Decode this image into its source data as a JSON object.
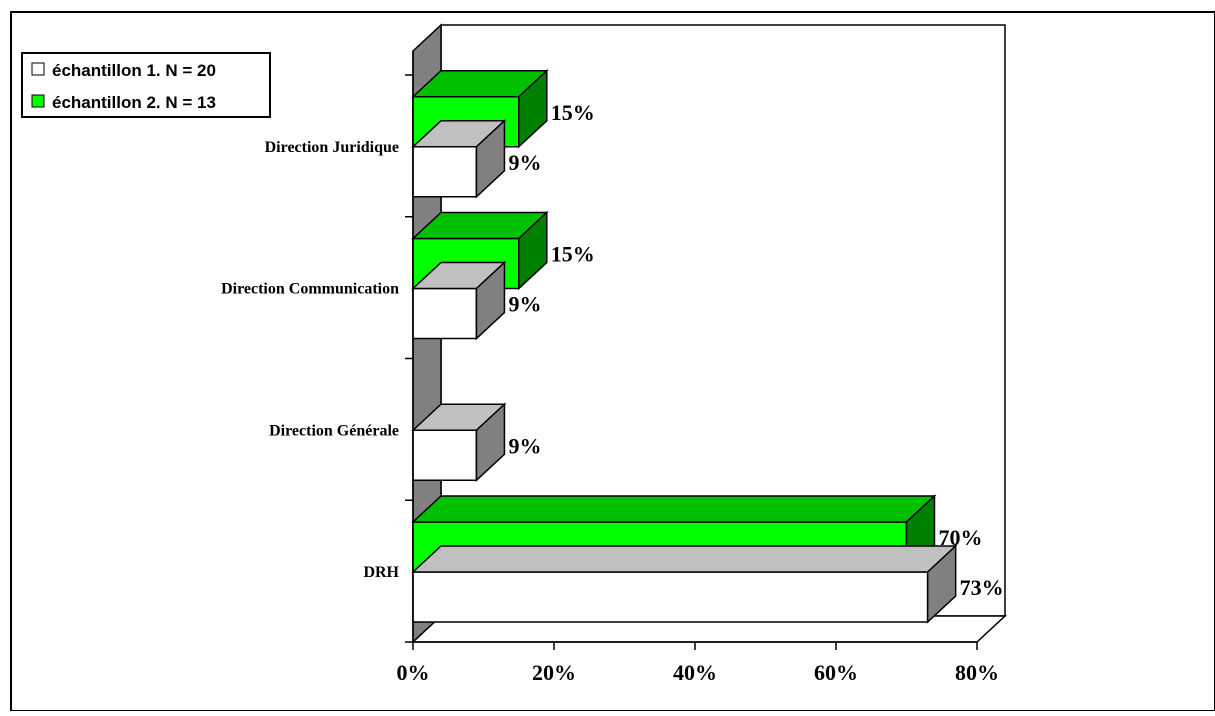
{
  "chart_data": {
    "type": "bar",
    "orientation": "horizontal",
    "three_d": true,
    "categories": [
      "DRH",
      "Direction Générale",
      "Direction Communication",
      "Direction Juridique"
    ],
    "series": [
      {
        "name": "échantillon 1. N = 20",
        "values": [
          73,
          9,
          9,
          9
        ],
        "labels": [
          "73%",
          "9%",
          "9%",
          "9%"
        ],
        "color": "#ffffff"
      },
      {
        "name": "échantillon 2. N = 13",
        "values": [
          70,
          null,
          15,
          15
        ],
        "labels": [
          "70%",
          "",
          "15%",
          "15%"
        ],
        "color": "#00ff00"
      }
    ],
    "xlim": [
      0,
      80
    ],
    "xticks": [
      "0%",
      "20%",
      "40%",
      "60%",
      "80%"
    ],
    "xtick_values": [
      0,
      20,
      40,
      60,
      80
    ],
    "legend_position": "top-left",
    "grid": false,
    "colors": {
      "series1_side": "#808080",
      "series1_top": "#c0c0c0",
      "series2_side": "#008000",
      "series2_top": "#00c000",
      "wall": "#808080",
      "axis": "#000000"
    }
  }
}
